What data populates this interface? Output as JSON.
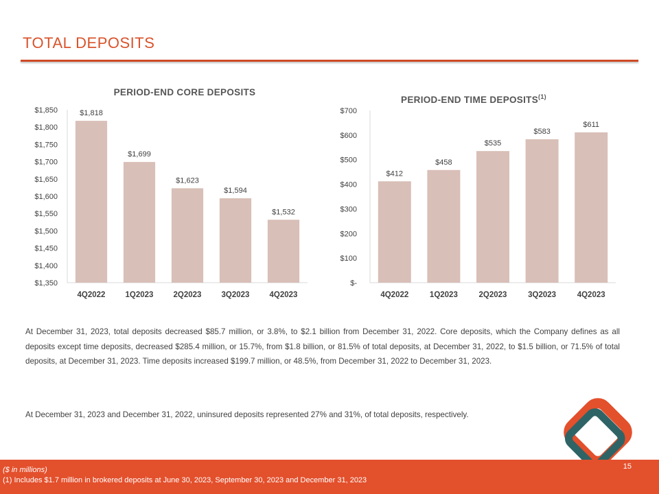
{
  "page": {
    "title": "TOTAL DEPOSITS",
    "accent_color": "#e3502c",
    "bar_color": "#d8bfb7",
    "logo_colors": {
      "outer": "#e3502c",
      "inner": "#2f6466"
    },
    "paragraph_1": "At December 31, 2023, total deposits decreased $85.7 million, or 3.8%, to $2.1 billion from December 31, 2022. Core deposits, which the Company defines as all deposits except time deposits, decreased $285.4 million, or 15.7%, from $1.8 billion, or 81.5% of total deposits, at December 31, 2022, to $1.5 billion, or 71.5% of total deposits, at December 31, 2023. Time deposits increased $199.7 million, or 48.5%, from December 31, 2022 to December 31, 2023.",
    "paragraph_2": "At December 31, 2023 and December 31, 2022, uninsured deposits represented  27% and 31%, of total deposits, respectively.",
    "footnote_units": "($ in millions)",
    "footnote_1": "(1) Includes $1.7 million in brokered deposits at June 30, 2023, September 30, 2023 and December 31, 2023",
    "page_number": "15"
  },
  "chart_data": [
    {
      "type": "bar",
      "title": "PERIOD-END CORE DEPOSITS",
      "title_superscript": "",
      "categories": [
        "4Q2022",
        "1Q2023",
        "2Q2023",
        "3Q2023",
        "4Q2023"
      ],
      "values": [
        1818,
        1699,
        1623,
        1594,
        1532
      ],
      "value_labels": [
        "$1,818",
        "$1,699",
        "$1,623",
        "$1,594",
        "$1,532"
      ],
      "ylim": [
        1350,
        1850
      ],
      "yticks": [
        1350,
        1400,
        1450,
        1500,
        1550,
        1600,
        1650,
        1700,
        1750,
        1800,
        1850
      ],
      "ytick_labels": [
        "$1,350",
        "$1,400",
        "$1,450",
        "$1,500",
        "$1,550",
        "$1,600",
        "$1,650",
        "$1,700",
        "$1,750",
        "$1,800",
        "$1,850"
      ],
      "xlabel": "",
      "ylabel": "",
      "grid": false
    },
    {
      "type": "bar",
      "title": "PERIOD-END TIME DEPOSITS",
      "title_superscript": "(1)",
      "categories": [
        "4Q2022",
        "1Q2023",
        "2Q2023",
        "3Q2023",
        "4Q2023"
      ],
      "values": [
        412,
        458,
        535,
        583,
        611
      ],
      "value_labels": [
        "$412",
        "$458",
        "$535",
        "$583",
        "$611"
      ],
      "ylim": [
        0,
        700
      ],
      "yticks": [
        0,
        100,
        200,
        300,
        400,
        500,
        600,
        700
      ],
      "ytick_labels": [
        "$-",
        "$100",
        "$200",
        "$300",
        "$400",
        "$500",
        "$600",
        "$700"
      ],
      "xlabel": "",
      "ylabel": "",
      "grid": false
    }
  ]
}
